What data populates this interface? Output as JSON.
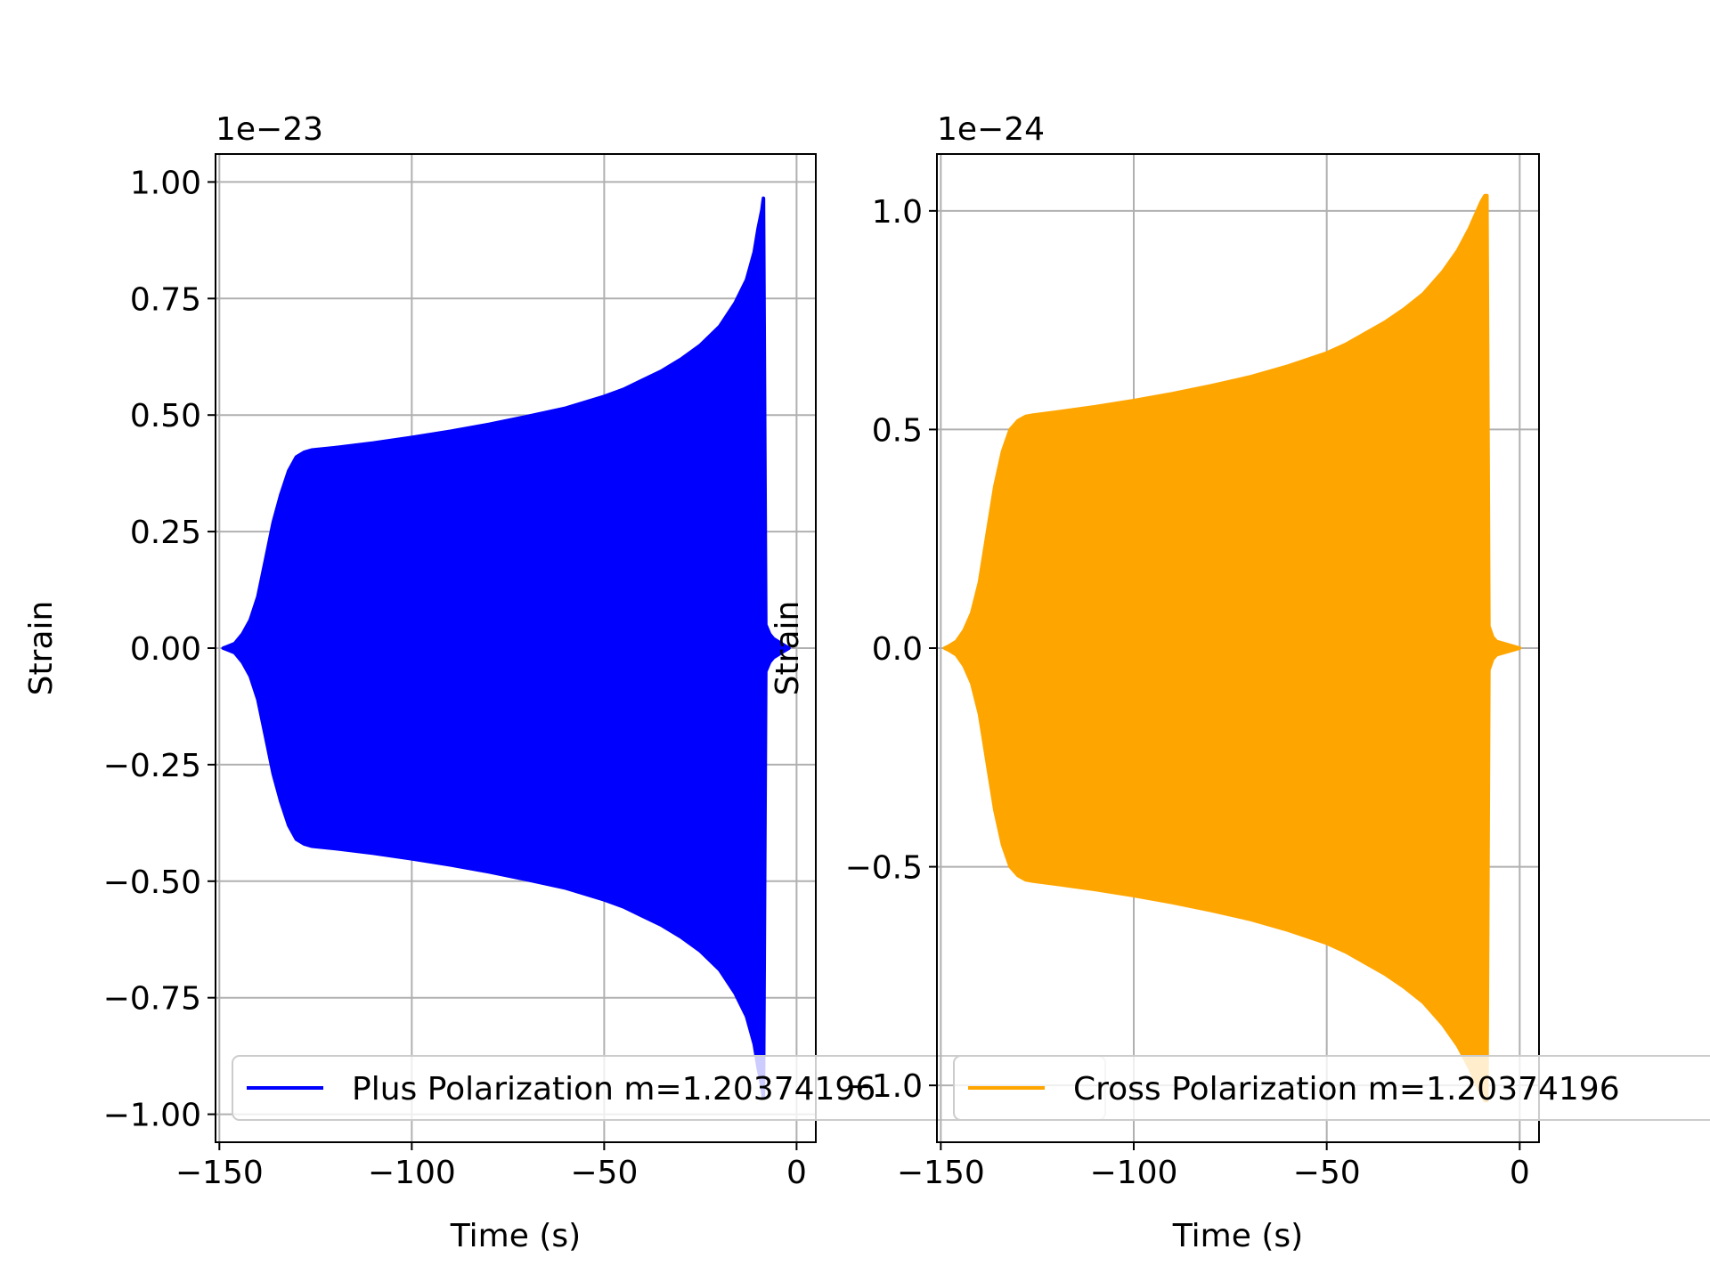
{
  "chart_data": [
    {
      "type": "line",
      "title": "",
      "xlabel": "Time (s)",
      "ylabel": "Strain",
      "offset_text": "1e−23",
      "xlim": [
        -151,
        5
      ],
      "ylim": [
        -1.06,
        1.06
      ],
      "xticks": [
        -150,
        -100,
        -50,
        0
      ],
      "xtick_labels": [
        "−150",
        "−100",
        "−50",
        "0"
      ],
      "yticks": [
        1.0,
        0.75,
        0.5,
        0.25,
        0.0,
        -0.25,
        -0.5,
        -0.75,
        -1.0
      ],
      "ytick_labels": [
        "1.00",
        "0.75",
        "0.50",
        "0.25",
        "0.00",
        "−0.25",
        "−0.50",
        "−0.75",
        "−1.00"
      ],
      "grid": true,
      "legend_position": "bottom",
      "series": [
        {
          "name": "Plus Polarization m=1.20374196",
          "color": "#0000ff",
          "envelope": {
            "x": [
              -149,
              -148,
              -146,
              -144,
              -142,
              -140,
              -138,
              -136,
              -134,
              -132,
              -130,
              -128,
              -126,
              -120,
              -110,
              -100,
              -90,
              -80,
              -70,
              -60,
              -50,
              -45,
              -40,
              -35,
              -30,
              -25,
              -20,
              -16,
              -13,
              -11,
              -10,
              -9,
              -8.6,
              -8,
              -7,
              -6,
              -5,
              -4,
              -3,
              -2
            ],
            "y": [
              0.0,
              0.003,
              0.01,
              0.03,
              0.06,
              0.11,
              0.19,
              0.27,
              0.33,
              0.38,
              0.41,
              0.42,
              0.425,
              0.43,
              0.44,
              0.452,
              0.465,
              0.48,
              0.497,
              0.515,
              0.54,
              0.555,
              0.575,
              0.595,
              0.62,
              0.65,
              0.69,
              0.74,
              0.79,
              0.85,
              0.9,
              0.94,
              0.965,
              0.05,
              0.03,
              0.02,
              0.015,
              0.01,
              0.005,
              0.0
            ]
          }
        }
      ]
    },
    {
      "type": "line",
      "title": "",
      "xlabel": "Time (s)",
      "ylabel": "Strain",
      "offset_text": "1e−24",
      "xlim": [
        -151,
        5
      ],
      "ylim": [
        -1.13,
        1.13
      ],
      "xticks": [
        -150,
        -100,
        -50,
        0
      ],
      "xtick_labels": [
        "−150",
        "−100",
        "−50",
        "0"
      ],
      "yticks": [
        1.0,
        0.5,
        0.0,
        -0.5,
        -1.0
      ],
      "ytick_labels": [
        "1.0",
        "0.5",
        "0.0",
        "−0.5",
        "−1.0"
      ],
      "grid": true,
      "legend_position": "bottom",
      "series": [
        {
          "name": "Cross Polarization m=1.20374196",
          "color": "#ffa500",
          "envelope": {
            "x": [
              -149,
              -148,
              -146,
              -144,
              -142,
              -140,
              -138,
              -136,
              -134,
              -132,
              -130,
              -128,
              -126,
              -120,
              -110,
              -100,
              -90,
              -80,
              -70,
              -60,
              -50,
              -45,
              -40,
              -35,
              -30,
              -25,
              -20,
              -16,
              -13,
              -11,
              -10,
              -9,
              -8.5,
              -8,
              -7,
              -6,
              -4,
              -2,
              0
            ],
            "y": [
              0.0,
              0.004,
              0.015,
              0.04,
              0.08,
              0.15,
              0.26,
              0.37,
              0.45,
              0.5,
              0.52,
              0.53,
              0.533,
              0.54,
              0.552,
              0.566,
              0.582,
              0.6,
              0.62,
              0.645,
              0.675,
              0.695,
              0.72,
              0.745,
              0.775,
              0.81,
              0.86,
              0.91,
              0.96,
              1.0,
              1.02,
              1.035,
              1.035,
              0.05,
              0.025,
              0.015,
              0.01,
              0.005,
              0.0
            ]
          }
        }
      ]
    }
  ]
}
